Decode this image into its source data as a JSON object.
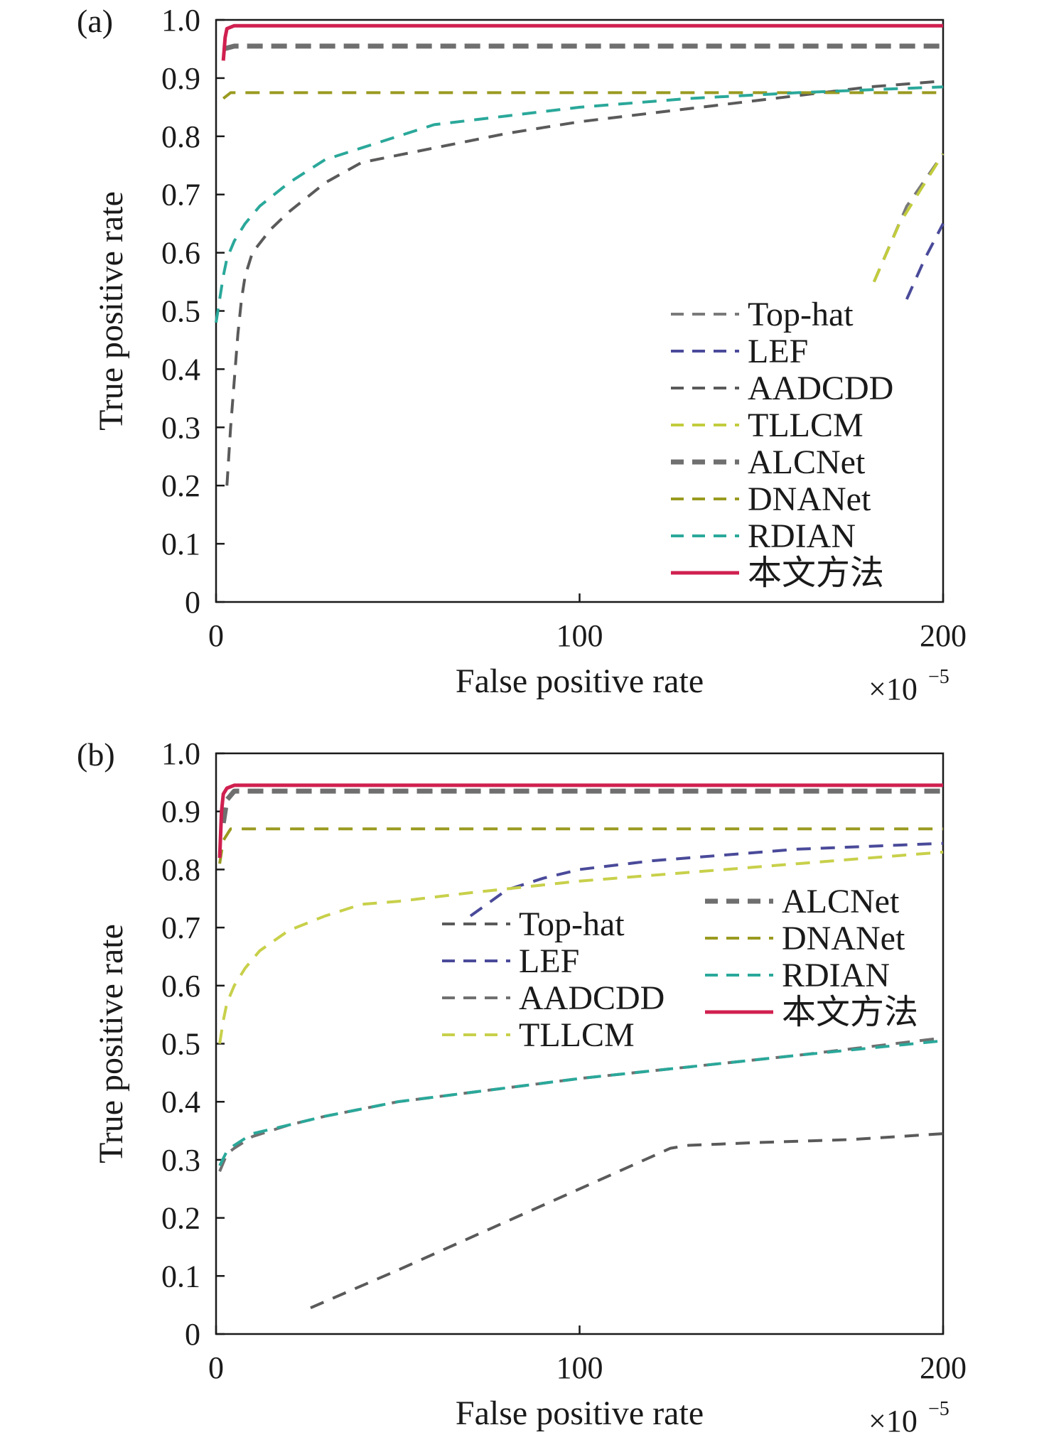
{
  "chart_data": [
    {
      "type": "line",
      "panel_label": "(a)",
      "xlabel": "False positive rate",
      "ylabel": "True positive rate",
      "x_multiplier": "×10",
      "x_multiplier_exp": "−5",
      "xlim": [
        0,
        200
      ],
      "ylim": [
        0,
        1.0
      ],
      "x_ticks": [
        "0",
        "100",
        "200"
      ],
      "y_ticks": [
        "0",
        "0.1",
        "0.2",
        "0.3",
        "0.4",
        "0.5",
        "0.6",
        "0.7",
        "0.8",
        "0.9",
        "1.0"
      ],
      "legend_position": "lower-right",
      "legend_columns": 1,
      "series": [
        {
          "name": "Top-hat",
          "color": "#7a7a7a",
          "dash": "long",
          "x": [
            181,
            190,
            200
          ],
          "y": [
            0.55,
            0.68,
            0.77
          ]
        },
        {
          "name": "LEF",
          "color": "#4a4a9a",
          "dash": "long",
          "x": [
            190,
            195,
            200
          ],
          "y": [
            0.52,
            0.59,
            0.65
          ]
        },
        {
          "name": "AADCDD",
          "color": "#5a5a5a",
          "dash": "long",
          "x": [
            3,
            4,
            5,
            6,
            7,
            8,
            10,
            15,
            20,
            30,
            40,
            60,
            80,
            100,
            120,
            140,
            160,
            180,
            200
          ],
          "y": [
            0.2,
            0.3,
            0.38,
            0.46,
            0.52,
            0.56,
            0.6,
            0.64,
            0.67,
            0.72,
            0.755,
            0.78,
            0.805,
            0.825,
            0.84,
            0.855,
            0.87,
            0.885,
            0.895
          ]
        },
        {
          "name": "TLLCM",
          "color": "#c2cc3c",
          "dash": "long",
          "x": [
            181,
            188,
            195,
            200
          ],
          "y": [
            0.55,
            0.65,
            0.72,
            0.77
          ]
        },
        {
          "name": "ALCNet",
          "color": "#6f6f6f",
          "dash": "thick",
          "x": [
            2,
            5,
            20,
            60,
            100,
            150,
            200
          ],
          "y": [
            0.95,
            0.955,
            0.955,
            0.955,
            0.955,
            0.955,
            0.955
          ]
        },
        {
          "name": "DNANet",
          "color": "#9a9a20",
          "dash": "long",
          "x": [
            2,
            4,
            20,
            60,
            100,
            150,
            200
          ],
          "y": [
            0.865,
            0.875,
            0.875,
            0.875,
            0.875,
            0.875,
            0.875
          ]
        },
        {
          "name": "RDIAN",
          "color": "#2aa89a",
          "dash": "long",
          "x": [
            0,
            1,
            2,
            3,
            5,
            8,
            12,
            20,
            30,
            40,
            60,
            80,
            100,
            130,
            160,
            200
          ],
          "y": [
            0.48,
            0.52,
            0.56,
            0.59,
            0.62,
            0.65,
            0.68,
            0.72,
            0.76,
            0.78,
            0.82,
            0.835,
            0.85,
            0.865,
            0.875,
            0.885
          ]
        },
        {
          "name": "本文方法",
          "color": "#d02050",
          "dash": "solid",
          "x": [
            2,
            2.5,
            3,
            5,
            50,
            100,
            150,
            200
          ],
          "y": [
            0.93,
            0.97,
            0.985,
            0.99,
            0.99,
            0.99,
            0.99,
            0.99
          ]
        }
      ]
    },
    {
      "type": "line",
      "panel_label": "(b)",
      "xlabel": "False positive rate",
      "ylabel": "True positive rate",
      "x_multiplier": "×10",
      "x_multiplier_exp": "−5",
      "xlim": [
        0,
        200
      ],
      "ylim": [
        0,
        1.0
      ],
      "x_ticks": [
        "0",
        "100",
        "200"
      ],
      "y_ticks": [
        "0",
        "0.1",
        "0.2",
        "0.3",
        "0.4",
        "0.5",
        "0.6",
        "0.7",
        "0.8",
        "0.9",
        "1.0"
      ],
      "legend_position": "center-right",
      "legend_columns": 2,
      "series": [
        {
          "name": "Top-hat",
          "color": "#5a5a5a",
          "dash": "long",
          "x": [
            26,
            50,
            75,
            100,
            125,
            130,
            150,
            175,
            200
          ],
          "y": [
            0.045,
            0.11,
            0.18,
            0.25,
            0.32,
            0.325,
            0.33,
            0.335,
            0.345
          ]
        },
        {
          "name": "LEF",
          "color": "#4a4a9a",
          "dash": "long",
          "x": [
            70,
            80,
            90,
            100,
            120,
            140,
            160,
            180,
            200
          ],
          "y": [
            0.72,
            0.765,
            0.785,
            0.8,
            0.815,
            0.825,
            0.835,
            0.84,
            0.845
          ]
        },
        {
          "name": "AADCDD",
          "color": "#707070",
          "dash": "long",
          "x": [
            1,
            3,
            5,
            10,
            20,
            30,
            50,
            75,
            100,
            130,
            160,
            200
          ],
          "y": [
            0.28,
            0.31,
            0.32,
            0.34,
            0.36,
            0.375,
            0.4,
            0.42,
            0.44,
            0.46,
            0.48,
            0.51
          ]
        },
        {
          "name": "TLLCM",
          "color": "#c8d04a",
          "dash": "long",
          "x": [
            1,
            2,
            3,
            5,
            8,
            12,
            20,
            30,
            40,
            50,
            70,
            100,
            130,
            160,
            200
          ],
          "y": [
            0.5,
            0.54,
            0.57,
            0.6,
            0.63,
            0.66,
            0.695,
            0.72,
            0.74,
            0.745,
            0.76,
            0.78,
            0.795,
            0.81,
            0.83
          ]
        },
        {
          "name": "ALCNet",
          "color": "#6f6f6f",
          "dash": "thick",
          "x": [
            2,
            3,
            5,
            20,
            60,
            100,
            150,
            200
          ],
          "y": [
            0.88,
            0.92,
            0.935,
            0.935,
            0.935,
            0.935,
            0.935,
            0.935
          ]
        },
        {
          "name": "DNANet",
          "color": "#9a9a20",
          "dash": "long",
          "x": [
            1,
            2,
            4,
            20,
            60,
            100,
            150,
            200
          ],
          "y": [
            0.81,
            0.85,
            0.87,
            0.87,
            0.87,
            0.87,
            0.87,
            0.87
          ]
        },
        {
          "name": "RDIAN",
          "color": "#2aa89a",
          "dash": "long",
          "x": [
            1,
            3,
            5,
            10,
            20,
            30,
            50,
            75,
            100,
            130,
            160,
            200
          ],
          "y": [
            0.29,
            0.315,
            0.325,
            0.345,
            0.36,
            0.375,
            0.4,
            0.42,
            0.44,
            0.46,
            0.48,
            0.505
          ]
        },
        {
          "name": "本文方法",
          "color": "#d02050",
          "dash": "solid",
          "x": [
            1,
            1.5,
            2,
            3,
            5,
            50,
            100,
            150,
            200
          ],
          "y": [
            0.82,
            0.9,
            0.93,
            0.94,
            0.945,
            0.945,
            0.945,
            0.945,
            0.945
          ]
        }
      ]
    }
  ]
}
